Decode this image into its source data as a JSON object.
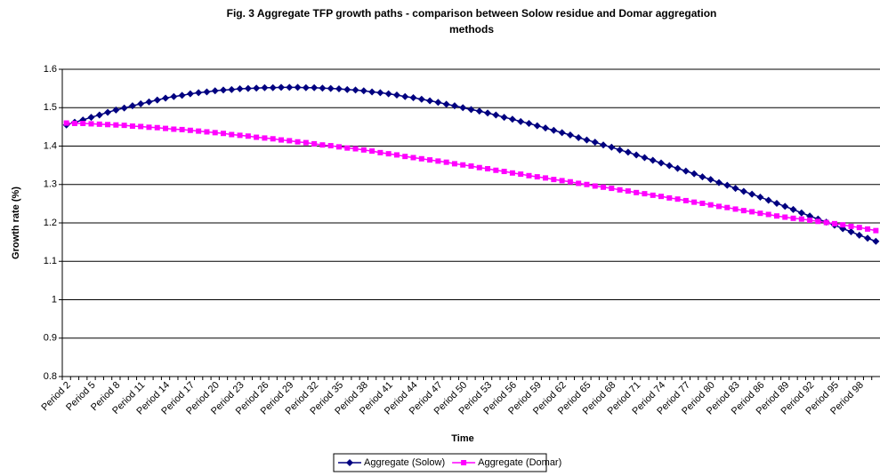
{
  "chart_data": {
    "type": "line",
    "title": "Fig. 3 Aggregate TFP growth paths - comparison between Solow residue and Domar aggregation methods",
    "x_label": "Time",
    "y_label": "Growth rate (%)",
    "categories": [
      "Period 2",
      null,
      null,
      "Period 5",
      null,
      null,
      "Period 8",
      null,
      null,
      "Period 11",
      null,
      null,
      "Period 14",
      null,
      null,
      "Period 17",
      null,
      null,
      "Period 20",
      null,
      null,
      "Period 23",
      null,
      null,
      "Period 26",
      null,
      null,
      "Period 29",
      null,
      null,
      "Period 32",
      null,
      null,
      "Period 35",
      null,
      null,
      "Period 38",
      null,
      null,
      "Period 41",
      null,
      null,
      "Period 44",
      null,
      null,
      "Period 47",
      null,
      null,
      "Period 50",
      null,
      null,
      "Period 53",
      null,
      null,
      "Period 56",
      null,
      null,
      "Period 59",
      null,
      null,
      "Period 62",
      null,
      null,
      "Period 65",
      null,
      null,
      "Period 68",
      null,
      null,
      "Period 71",
      null,
      null,
      "Period 74",
      null,
      null,
      "Period 77",
      null,
      null,
      "Period 80",
      null,
      null,
      "Period 83",
      null,
      null,
      "Period 86",
      null,
      null,
      "Period 89",
      null,
      null,
      "Period 92",
      null,
      null,
      "Period 95",
      null,
      null,
      "Period 98",
      null,
      null
    ],
    "series": [
      {
        "name": "Aggregate (Solow)",
        "color": "#000080",
        "marker": "diamond",
        "values": [
          1.455,
          1.462,
          1.468,
          1.475,
          1.481,
          1.488,
          1.494,
          1.499,
          1.505,
          1.51,
          1.515,
          1.52,
          1.525,
          1.529,
          1.532,
          1.536,
          1.539,
          1.541,
          1.544,
          1.546,
          1.547,
          1.549,
          1.55,
          1.551,
          1.552,
          1.552,
          1.553,
          1.553,
          1.553,
          1.552,
          1.552,
          1.551,
          1.55,
          1.549,
          1.547,
          1.546,
          1.544,
          1.541,
          1.539,
          1.536,
          1.533,
          1.529,
          1.526,
          1.522,
          1.518,
          1.514,
          1.509,
          1.505,
          1.5,
          1.495,
          1.491,
          1.486,
          1.481,
          1.475,
          1.47,
          1.464,
          1.459,
          1.453,
          1.447,
          1.441,
          1.435,
          1.429,
          1.422,
          1.416,
          1.41,
          1.403,
          1.397,
          1.39,
          1.384,
          1.377,
          1.37,
          1.363,
          1.356,
          1.349,
          1.342,
          1.335,
          1.328,
          1.32,
          1.313,
          1.305,
          1.298,
          1.29,
          1.282,
          1.275,
          1.267,
          1.259,
          1.251,
          1.243,
          1.235,
          1.226,
          1.218,
          1.21,
          1.202,
          1.194,
          1.185,
          1.177,
          1.168,
          1.16,
          1.152
        ]
      },
      {
        "name": "Aggregate (Domar)",
        "color": "#FF00FF",
        "marker": "square",
        "values": [
          1.46,
          1.459,
          1.459,
          1.458,
          1.457,
          1.456,
          1.455,
          1.454,
          1.452,
          1.451,
          1.449,
          1.448,
          1.446,
          1.444,
          1.443,
          1.441,
          1.439,
          1.437,
          1.435,
          1.433,
          1.43,
          1.428,
          1.426,
          1.423,
          1.421,
          1.419,
          1.416,
          1.414,
          1.411,
          1.409,
          1.406,
          1.403,
          1.401,
          1.398,
          1.395,
          1.393,
          1.39,
          1.387,
          1.383,
          1.38,
          1.377,
          1.373,
          1.37,
          1.367,
          1.364,
          1.361,
          1.358,
          1.354,
          1.351,
          1.348,
          1.344,
          1.341,
          1.337,
          1.334,
          1.33,
          1.327,
          1.323,
          1.32,
          1.317,
          1.313,
          1.31,
          1.307,
          1.303,
          1.3,
          1.296,
          1.293,
          1.29,
          1.286,
          1.283,
          1.279,
          1.276,
          1.272,
          1.269,
          1.265,
          1.262,
          1.258,
          1.254,
          1.251,
          1.247,
          1.243,
          1.24,
          1.236,
          1.232,
          1.229,
          1.225,
          1.222,
          1.218,
          1.215,
          1.212,
          1.21,
          1.207,
          1.204,
          1.201,
          1.198,
          1.195,
          1.191,
          1.188,
          1.184,
          1.18
        ]
      }
    ],
    "ylim": [
      0.8,
      1.6
    ],
    "yticks": [
      0.8,
      0.9,
      1,
      1.1,
      1.2,
      1.3,
      1.4,
      1.5,
      1.6
    ],
    "grid": true,
    "legend": "bottom"
  }
}
